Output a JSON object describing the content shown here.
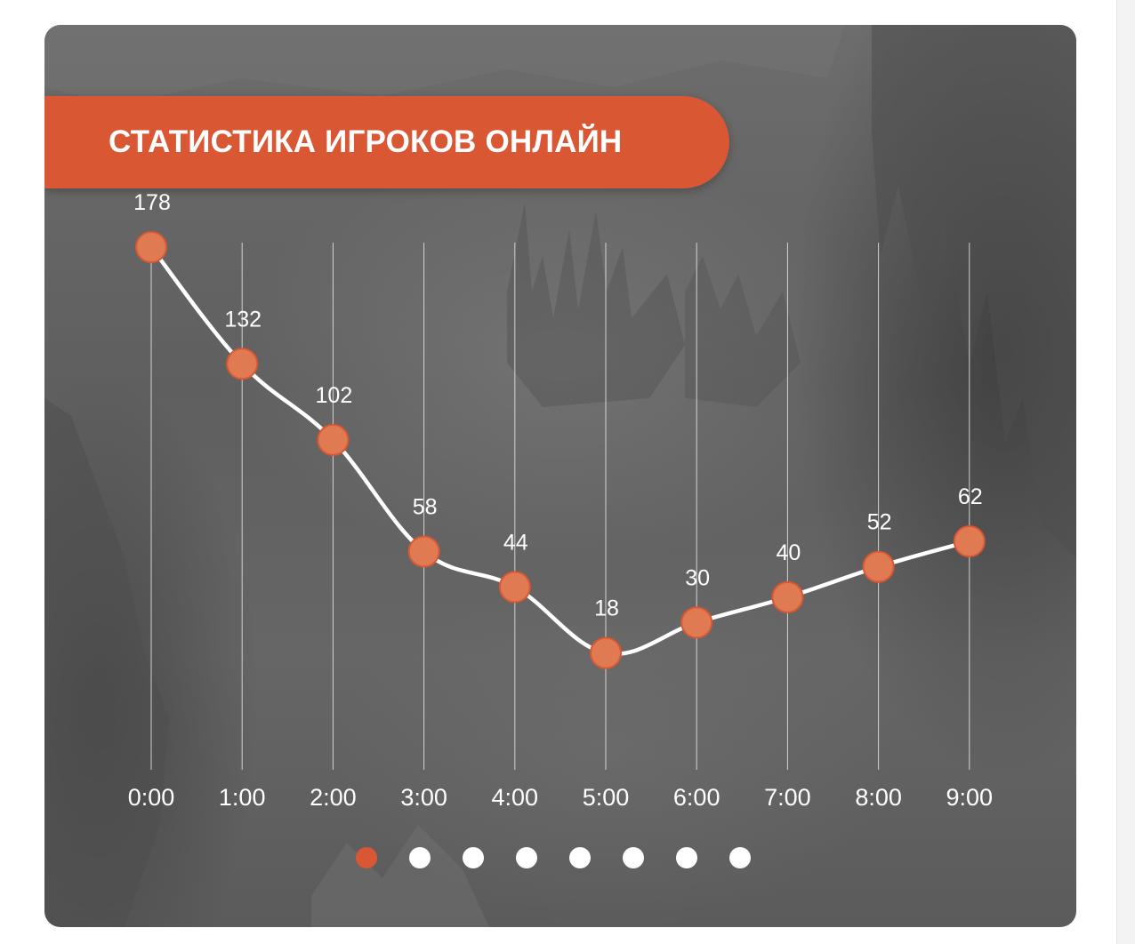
{
  "title": "СТАТИСТИКА ИГРОКОВ ОНЛАЙН",
  "chart_data": {
    "type": "line",
    "categories": [
      "0:00",
      "1:00",
      "2:00",
      "3:00",
      "4:00",
      "5:00",
      "6:00",
      "7:00",
      "8:00",
      "9:00"
    ],
    "values": [
      178,
      132,
      102,
      58,
      44,
      18,
      30,
      40,
      52,
      62
    ],
    "title": "СТАТИСТИКА ИГРОКОВ ОНЛАЙН",
    "xlabel": "",
    "ylabel": "",
    "ylim": [
      0,
      178
    ],
    "grid": "vertical",
    "data_labels": true,
    "colors": {
      "line": "#ffffff",
      "marker": "#e07a52",
      "marker_stroke": "#d95733",
      "gridline": "#e6e6e6",
      "accent": "#d95733"
    }
  },
  "pagination": {
    "count": 8,
    "active_index": 0
  }
}
